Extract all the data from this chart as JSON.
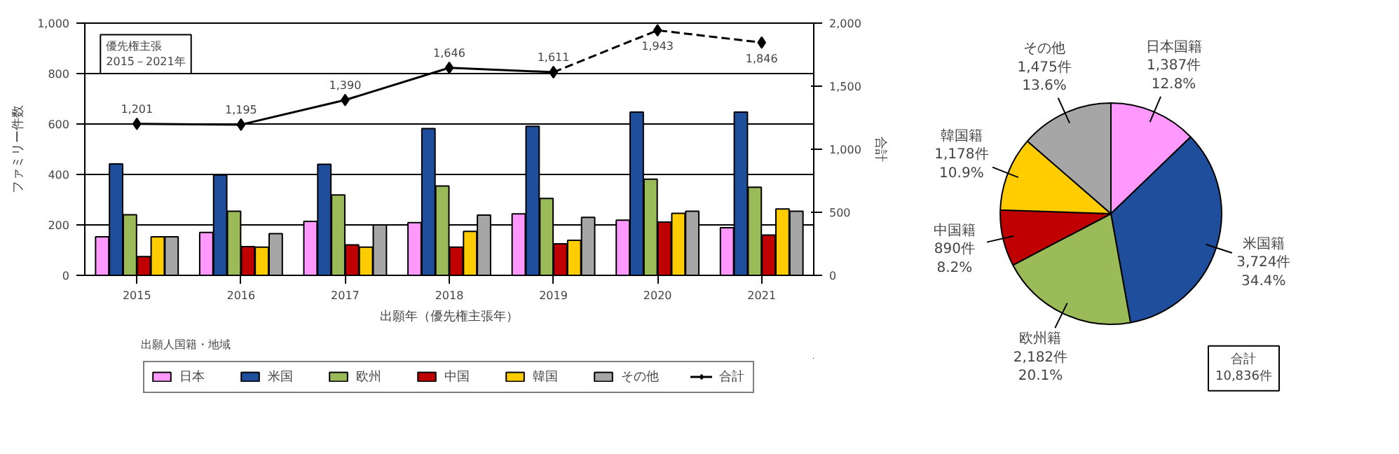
{
  "chart_data": [
    {
      "type": "bar",
      "categories": [
        "2015",
        "2016",
        "2017",
        "2018",
        "2019",
        "2020",
        "2021"
      ],
      "xlabel": "出願年（優先権主張年）",
      "ylabel": "ファミリー件数",
      "y2label": "合計",
      "legend_title": "出願人国籍・地域",
      "annotations": [
        "優先権主張\n2015－2021年"
      ],
      "ylim": [
        0,
        1000
      ],
      "yticks": [
        0,
        200,
        400,
        600,
        800,
        {
          "value": 1000,
          "label": "1,000"
        }
      ],
      "y2lim": [
        0,
        2000
      ],
      "y2ticks": [
        0,
        500,
        {
          "value": 1000,
          "label": "1,000"
        },
        {
          "value": 1500,
          "label": "1,500"
        },
        {
          "value": 2000,
          "label": "2,000"
        }
      ],
      "grid": "y",
      "legend": "bottom",
      "series": [
        {
          "name": "日本",
          "color": "#ff99ff",
          "values": [
            153,
            170,
            214,
            209,
            244,
            219,
            189
          ]
        },
        {
          "name": "米国",
          "color": "#1f4e9c",
          "values": [
            442,
            398,
            440,
            582,
            591,
            647,
            647
          ]
        },
        {
          "name": "欧州",
          "color": "#9bbb59",
          "values": [
            240,
            254,
            319,
            354,
            305,
            381,
            349
          ]
        },
        {
          "name": "中国",
          "color": "#c00000",
          "values": [
            74,
            114,
            121,
            112,
            125,
            211,
            160
          ]
        },
        {
          "name": "韓国",
          "color": "#ffcc00",
          "values": [
            153,
            112,
            112,
            174,
            139,
            246,
            263
          ]
        },
        {
          "name": "その他",
          "color": "#a6a6a6",
          "values": [
            153,
            165,
            200,
            239,
            230,
            254,
            254
          ]
        },
        {
          "name": "合計",
          "type": "line",
          "axis": "y2",
          "color": "#000000",
          "marker": "diamond",
          "line_style": "solid",
          "values": [
            1201,
            1195,
            1390,
            1646,
            1611,
            null,
            null
          ],
          "value_labels": [
            "1,201",
            "1,195",
            "1,390",
            "1,646",
            "1,611",
            null,
            null
          ]
        },
        {
          "type": "line",
          "axis": "y2",
          "color": "#000000",
          "marker": "diamond",
          "line_style": "dashed",
          "values": [
            null,
            null,
            null,
            null,
            1611,
            1943,
            1846
          ],
          "value_labels": [
            null,
            null,
            null,
            null,
            null,
            "1,943",
            "1,846"
          ]
        }
      ]
    },
    {
      "type": "pie",
      "categories": [
        "日本国籍",
        "米国籍",
        "欧州籍",
        "中国籍",
        "韓国籍",
        "その他"
      ],
      "values": [
        1387,
        3724,
        2182,
        890,
        1178,
        1475
      ],
      "colors": [
        "#ff99ff",
        "#1f4e9c",
        "#9bbb59",
        "#c00000",
        "#ffcc00",
        "#a6a6a6"
      ],
      "value_labels": [
        "1,387件\n12.8%",
        "3,724件\n34.4%",
        "2,182件\n20.1%",
        "890件\n8.2%",
        "1,178件\n10.9%",
        "1,475件\n13.6%"
      ],
      "annotations": [
        "合計\n10,836件"
      ]
    }
  ]
}
